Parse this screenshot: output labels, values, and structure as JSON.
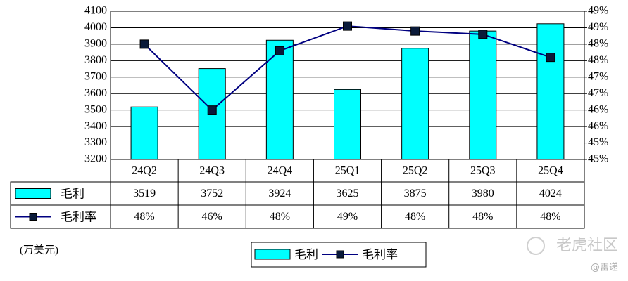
{
  "chart_data": {
    "type": "bar",
    "categories": [
      "24Q2",
      "24Q3",
      "24Q4",
      "25Q1",
      "25Q2",
      "25Q3",
      "25Q4"
    ],
    "series": [
      {
        "name": "毛利",
        "type": "bar",
        "color": "#00FFFF",
        "values": [
          3519,
          3752,
          3924,
          3625,
          3875,
          3980,
          4024
        ]
      },
      {
        "name": "毛利率",
        "type": "line",
        "axis": "y2",
        "color": "#000080",
        "marker_color": "#0a1a3a",
        "values": [
          48.0,
          46.0,
          47.8,
          48.55,
          48.4,
          48.3,
          47.6
        ],
        "value_labels": [
          "48%",
          "46%",
          "48%",
          "49%",
          "48%",
          "48%",
          "48%"
        ]
      }
    ],
    "ylim": [
      3200,
      4100
    ],
    "yticks": [
      3200,
      3300,
      3400,
      3500,
      3600,
      3700,
      3800,
      3900,
      4000,
      4100
    ],
    "y2lim": [
      44.5,
      49
    ],
    "y2ticks": [
      {
        "value": 44.5,
        "label": "45%"
      },
      {
        "value": 45,
        "label": "45%"
      },
      {
        "value": 45.5,
        "label": "46%"
      },
      {
        "value": 46,
        "label": "46%"
      },
      {
        "value": 46.5,
        "label": "47%"
      },
      {
        "value": 47,
        "label": "47%"
      },
      {
        "value": 47.5,
        "label": "48%"
      },
      {
        "value": 48,
        "label": "48%"
      },
      {
        "value": 48.5,
        "label": "49%"
      },
      {
        "value": 49,
        "label": "49%"
      }
    ],
    "grid": true,
    "unit_label": "(万美元)"
  },
  "watermark": {
    "brand": "老虎社区",
    "author": "@雷递"
  }
}
